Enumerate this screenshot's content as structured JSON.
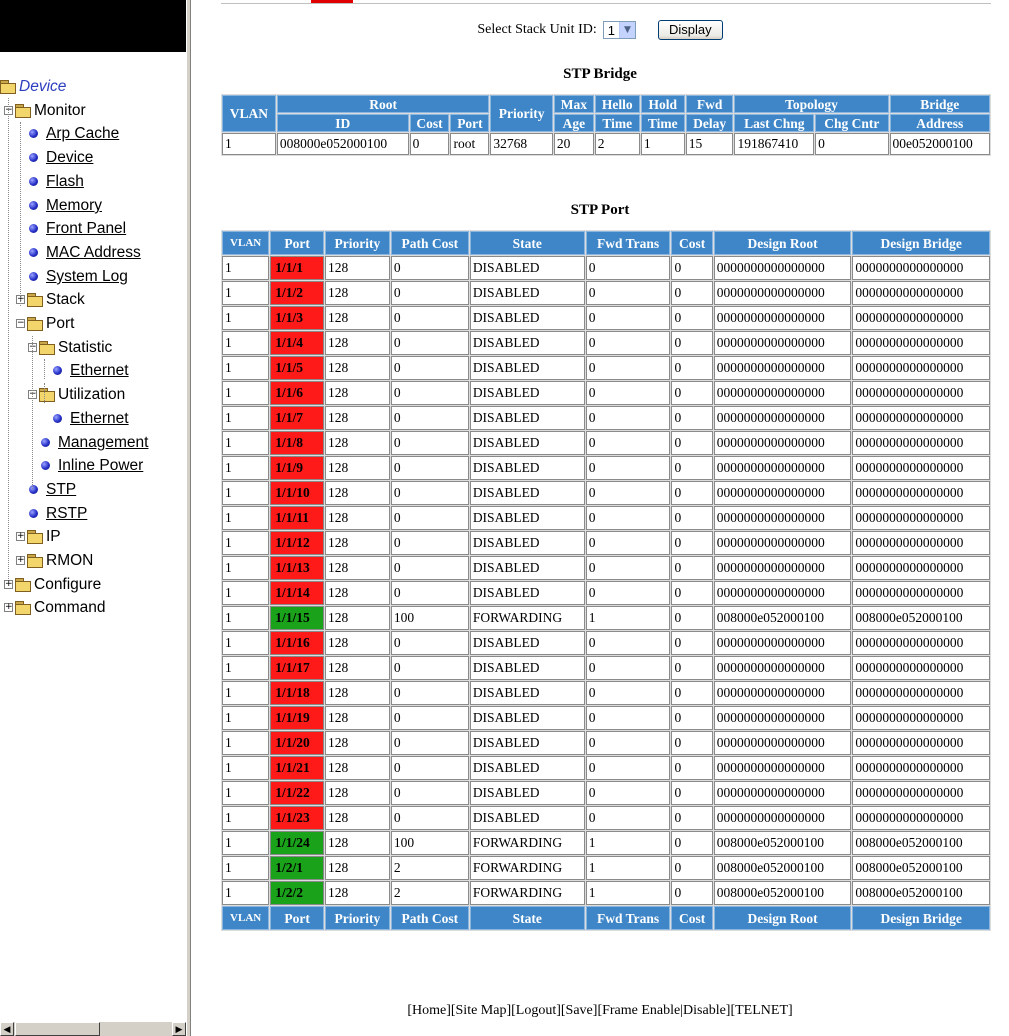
{
  "nav": {
    "tree": [
      {
        "label": "Device",
        "level": 0,
        "type": "folder-open",
        "link": false,
        "device": true
      },
      {
        "label": "Monitor",
        "level": 1,
        "type": "folder-open",
        "expander": "−"
      },
      {
        "label": "Arp Cache",
        "level": 2,
        "type": "leaf"
      },
      {
        "label": "Device",
        "level": 2,
        "type": "leaf"
      },
      {
        "label": "Flash",
        "level": 2,
        "type": "leaf"
      },
      {
        "label": "Memory",
        "level": 2,
        "type": "leaf"
      },
      {
        "label": "Front Panel",
        "level": 2,
        "type": "leaf"
      },
      {
        "label": "MAC Address",
        "level": 2,
        "type": "leaf"
      },
      {
        "label": "System Log",
        "level": 2,
        "type": "leaf"
      },
      {
        "label": "Stack",
        "level": 2,
        "type": "folder",
        "expander": "+"
      },
      {
        "label": "Port",
        "level": 2,
        "type": "folder-open",
        "expander": "−"
      },
      {
        "label": "Statistic",
        "level": 3,
        "type": "folder-open",
        "expander": "−"
      },
      {
        "label": "Ethernet",
        "level": 4,
        "type": "leaf"
      },
      {
        "label": "Utilization",
        "level": 3,
        "type": "folder-open",
        "expander": "−"
      },
      {
        "label": "Ethernet",
        "level": 4,
        "type": "leaf"
      },
      {
        "label": "Management",
        "level": 3,
        "type": "leaf"
      },
      {
        "label": "Inline Power",
        "level": 3,
        "type": "leaf"
      },
      {
        "label": "STP",
        "level": 2,
        "type": "leaf"
      },
      {
        "label": "RSTP",
        "level": 2,
        "type": "leaf"
      },
      {
        "label": "IP",
        "level": 2,
        "type": "folder",
        "expander": "+"
      },
      {
        "label": "RMON",
        "level": 2,
        "type": "folder",
        "expander": "+"
      },
      {
        "label": "Configure",
        "level": 1,
        "type": "folder",
        "expander": "+"
      },
      {
        "label": "Command",
        "level": 1,
        "type": "folder",
        "expander": "+"
      }
    ],
    "scroll_left_icon": "chevron-left-icon",
    "scroll_right_icon": "chevron-right-icon"
  },
  "stack_select": {
    "label": "Select Stack Unit ID:",
    "value": "1",
    "display_button": "Display"
  },
  "bridge": {
    "title": "STP Bridge",
    "headers": {
      "vlan": "VLAN",
      "root": "Root",
      "id": "ID",
      "cost": "Cost",
      "port": "Port",
      "priority": "Priority",
      "max_age_1": "Max",
      "max_age_2": "Age",
      "hello_1": "Hello",
      "hello_2": "Time",
      "hold_1": "Hold",
      "hold_2": "Time",
      "fwd_1": "Fwd",
      "fwd_2": "Delay",
      "topology": "Topology",
      "last_chng": "Last Chng",
      "chg_cntr": "Chg Cntr",
      "bridge_1": "Bridge",
      "bridge_2": "Address"
    },
    "row": {
      "vlan": "1",
      "id": "008000e052000100",
      "cost": "0",
      "port": "root",
      "priority": "32768",
      "max_age": "20",
      "hello_time": "2",
      "hold_time": "1",
      "fwd_delay": "15",
      "last_chng": "191867410",
      "chg_cntr": "0",
      "bridge_address": "00e052000100"
    }
  },
  "port": {
    "title": "STP Port",
    "headers": {
      "vlan": "VLAN",
      "port": "Port",
      "priority": "Priority",
      "path_cost": "Path Cost",
      "state": "State",
      "fwd_trans": "Fwd Trans",
      "cost": "Cost",
      "design_root": "Design Root",
      "design_bridge": "Design Bridge"
    },
    "colors": {
      "disabled": "#ff1a1a",
      "forwarding": "#1aa31a",
      "header": "#3e86c7"
    },
    "rows": [
      {
        "vlan": "1",
        "port": "1/1/1",
        "priority": "128",
        "path_cost": "0",
        "state": "DISABLED",
        "fwd_trans": "0",
        "cost": "0",
        "design_root": "0000000000000000",
        "design_bridge": "0000000000000000"
      },
      {
        "vlan": "1",
        "port": "1/1/2",
        "priority": "128",
        "path_cost": "0",
        "state": "DISABLED",
        "fwd_trans": "0",
        "cost": "0",
        "design_root": "0000000000000000",
        "design_bridge": "0000000000000000"
      },
      {
        "vlan": "1",
        "port": "1/1/3",
        "priority": "128",
        "path_cost": "0",
        "state": "DISABLED",
        "fwd_trans": "0",
        "cost": "0",
        "design_root": "0000000000000000",
        "design_bridge": "0000000000000000"
      },
      {
        "vlan": "1",
        "port": "1/1/4",
        "priority": "128",
        "path_cost": "0",
        "state": "DISABLED",
        "fwd_trans": "0",
        "cost": "0",
        "design_root": "0000000000000000",
        "design_bridge": "0000000000000000"
      },
      {
        "vlan": "1",
        "port": "1/1/5",
        "priority": "128",
        "path_cost": "0",
        "state": "DISABLED",
        "fwd_trans": "0",
        "cost": "0",
        "design_root": "0000000000000000",
        "design_bridge": "0000000000000000"
      },
      {
        "vlan": "1",
        "port": "1/1/6",
        "priority": "128",
        "path_cost": "0",
        "state": "DISABLED",
        "fwd_trans": "0",
        "cost": "0",
        "design_root": "0000000000000000",
        "design_bridge": "0000000000000000"
      },
      {
        "vlan": "1",
        "port": "1/1/7",
        "priority": "128",
        "path_cost": "0",
        "state": "DISABLED",
        "fwd_trans": "0",
        "cost": "0",
        "design_root": "0000000000000000",
        "design_bridge": "0000000000000000"
      },
      {
        "vlan": "1",
        "port": "1/1/8",
        "priority": "128",
        "path_cost": "0",
        "state": "DISABLED",
        "fwd_trans": "0",
        "cost": "0",
        "design_root": "0000000000000000",
        "design_bridge": "0000000000000000"
      },
      {
        "vlan": "1",
        "port": "1/1/9",
        "priority": "128",
        "path_cost": "0",
        "state": "DISABLED",
        "fwd_trans": "0",
        "cost": "0",
        "design_root": "0000000000000000",
        "design_bridge": "0000000000000000"
      },
      {
        "vlan": "1",
        "port": "1/1/10",
        "priority": "128",
        "path_cost": "0",
        "state": "DISABLED",
        "fwd_trans": "0",
        "cost": "0",
        "design_root": "0000000000000000",
        "design_bridge": "0000000000000000"
      },
      {
        "vlan": "1",
        "port": "1/1/11",
        "priority": "128",
        "path_cost": "0",
        "state": "DISABLED",
        "fwd_trans": "0",
        "cost": "0",
        "design_root": "0000000000000000",
        "design_bridge": "0000000000000000"
      },
      {
        "vlan": "1",
        "port": "1/1/12",
        "priority": "128",
        "path_cost": "0",
        "state": "DISABLED",
        "fwd_trans": "0",
        "cost": "0",
        "design_root": "0000000000000000",
        "design_bridge": "0000000000000000"
      },
      {
        "vlan": "1",
        "port": "1/1/13",
        "priority": "128",
        "path_cost": "0",
        "state": "DISABLED",
        "fwd_trans": "0",
        "cost": "0",
        "design_root": "0000000000000000",
        "design_bridge": "0000000000000000"
      },
      {
        "vlan": "1",
        "port": "1/1/14",
        "priority": "128",
        "path_cost": "0",
        "state": "DISABLED",
        "fwd_trans": "0",
        "cost": "0",
        "design_root": "0000000000000000",
        "design_bridge": "0000000000000000"
      },
      {
        "vlan": "1",
        "port": "1/1/15",
        "priority": "128",
        "path_cost": "100",
        "state": "FORWARDING",
        "fwd_trans": "1",
        "cost": "0",
        "design_root": "008000e052000100",
        "design_bridge": "008000e052000100"
      },
      {
        "vlan": "1",
        "port": "1/1/16",
        "priority": "128",
        "path_cost": "0",
        "state": "DISABLED",
        "fwd_trans": "0",
        "cost": "0",
        "design_root": "0000000000000000",
        "design_bridge": "0000000000000000"
      },
      {
        "vlan": "1",
        "port": "1/1/17",
        "priority": "128",
        "path_cost": "0",
        "state": "DISABLED",
        "fwd_trans": "0",
        "cost": "0",
        "design_root": "0000000000000000",
        "design_bridge": "0000000000000000"
      },
      {
        "vlan": "1",
        "port": "1/1/18",
        "priority": "128",
        "path_cost": "0",
        "state": "DISABLED",
        "fwd_trans": "0",
        "cost": "0",
        "design_root": "0000000000000000",
        "design_bridge": "0000000000000000"
      },
      {
        "vlan": "1",
        "port": "1/1/19",
        "priority": "128",
        "path_cost": "0",
        "state": "DISABLED",
        "fwd_trans": "0",
        "cost": "0",
        "design_root": "0000000000000000",
        "design_bridge": "0000000000000000"
      },
      {
        "vlan": "1",
        "port": "1/1/20",
        "priority": "128",
        "path_cost": "0",
        "state": "DISABLED",
        "fwd_trans": "0",
        "cost": "0",
        "design_root": "0000000000000000",
        "design_bridge": "0000000000000000"
      },
      {
        "vlan": "1",
        "port": "1/1/21",
        "priority": "128",
        "path_cost": "0",
        "state": "DISABLED",
        "fwd_trans": "0",
        "cost": "0",
        "design_root": "0000000000000000",
        "design_bridge": "0000000000000000"
      },
      {
        "vlan": "1",
        "port": "1/1/22",
        "priority": "128",
        "path_cost": "0",
        "state": "DISABLED",
        "fwd_trans": "0",
        "cost": "0",
        "design_root": "0000000000000000",
        "design_bridge": "0000000000000000"
      },
      {
        "vlan": "1",
        "port": "1/1/23",
        "priority": "128",
        "path_cost": "0",
        "state": "DISABLED",
        "fwd_trans": "0",
        "cost": "0",
        "design_root": "0000000000000000",
        "design_bridge": "0000000000000000"
      },
      {
        "vlan": "1",
        "port": "1/1/24",
        "priority": "128",
        "path_cost": "100",
        "state": "FORWARDING",
        "fwd_trans": "1",
        "cost": "0",
        "design_root": "008000e052000100",
        "design_bridge": "008000e052000100"
      },
      {
        "vlan": "1",
        "port": "1/2/1",
        "priority": "128",
        "path_cost": "2",
        "state": "FORWARDING",
        "fwd_trans": "1",
        "cost": "0",
        "design_root": "008000e052000100",
        "design_bridge": "008000e052000100"
      },
      {
        "vlan": "1",
        "port": "1/2/2",
        "priority": "128",
        "path_cost": "2",
        "state": "FORWARDING",
        "fwd_trans": "1",
        "cost": "0",
        "design_root": "008000e052000100",
        "design_bridge": "008000e052000100"
      }
    ]
  },
  "footer": {
    "links": [
      "[Home]",
      "[Site Map]",
      "[Logout]",
      "[Save]",
      "[Frame Enable|Disable]",
      "[TELNET]"
    ]
  }
}
